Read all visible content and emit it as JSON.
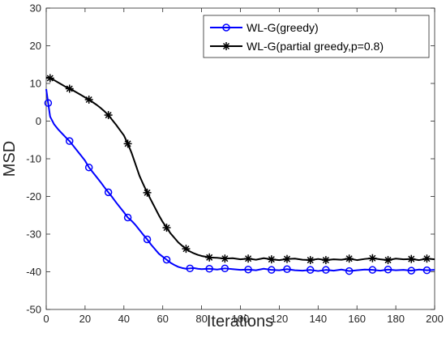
{
  "chart_data": {
    "type": "line",
    "title": "",
    "xlabel": "Iterations",
    "ylabel": "MSD",
    "xlim": [
      0,
      200
    ],
    "ylim": [
      -50,
      30
    ],
    "xticks": [
      0,
      20,
      40,
      60,
      80,
      100,
      120,
      140,
      160,
      180,
      200
    ],
    "yticks": [
      -50,
      -40,
      -30,
      -20,
      -10,
      0,
      10,
      20,
      30
    ],
    "grid": false,
    "legend_position": "top-right",
    "series": [
      {
        "name": "WL-G(greedy)",
        "color": "#0000ff",
        "marker": "circle",
        "x": [
          0,
          1,
          2,
          4,
          6,
          8,
          10,
          12,
          14,
          16,
          18,
          20,
          22,
          24,
          26,
          28,
          30,
          32,
          34,
          36,
          38,
          40,
          42,
          44,
          46,
          48,
          50,
          52,
          54,
          56,
          58,
          60,
          62,
          64,
          66,
          68,
          70,
          72,
          74,
          76,
          78,
          80,
          84,
          88,
          92,
          96,
          100,
          104,
          108,
          112,
          116,
          120,
          124,
          128,
          132,
          136,
          140,
          144,
          148,
          152,
          156,
          160,
          164,
          168,
          172,
          176,
          180,
          184,
          188,
          192,
          196,
          200
        ],
        "values": [
          8.5,
          4.8,
          1.2,
          -0.8,
          -2.1,
          -3.2,
          -4.3,
          -5.3,
          -6.6,
          -7.9,
          -9.2,
          -10.5,
          -12.3,
          -13.6,
          -14.9,
          -16.2,
          -17.6,
          -18.9,
          -20.2,
          -21.6,
          -22.9,
          -24.2,
          -25.6,
          -26.5,
          -27.6,
          -28.9,
          -30.2,
          -31.4,
          -32.8,
          -34.0,
          -35.2,
          -36.0,
          -36.8,
          -37.6,
          -38.2,
          -38.7,
          -39.0,
          -39.2,
          -39.1,
          -39.0,
          -39.2,
          -39.3,
          -39.2,
          -39.4,
          -39.1,
          -39.3,
          -39.5,
          -39.4,
          -39.6,
          -39.2,
          -39.5,
          -39.6,
          -39.3,
          -39.6,
          -39.7,
          -39.5,
          -39.8,
          -39.5,
          -39.7,
          -39.4,
          -39.8,
          -39.6,
          -39.4,
          -39.5,
          -39.7,
          -39.4,
          -39.6,
          -39.5,
          -39.7,
          -39.4,
          -39.6,
          -39.5
        ]
      },
      {
        "name": "WL-G(partial greedy,p=0.8)",
        "color": "#000000",
        "marker": "asterisk",
        "x": [
          0,
          2,
          4,
          6,
          8,
          10,
          12,
          14,
          16,
          18,
          20,
          22,
          24,
          26,
          28,
          30,
          32,
          34,
          36,
          38,
          40,
          42,
          44,
          46,
          48,
          50,
          52,
          54,
          56,
          58,
          60,
          62,
          64,
          66,
          68,
          70,
          72,
          74,
          76,
          78,
          80,
          82,
          84,
          88,
          92,
          96,
          100,
          104,
          108,
          112,
          116,
          120,
          124,
          128,
          132,
          136,
          140,
          144,
          148,
          152,
          156,
          160,
          164,
          168,
          172,
          176,
          180,
          184,
          188,
          192,
          196,
          200
        ],
        "values": [
          11.6,
          11.4,
          10.9,
          10.3,
          9.7,
          9.1,
          8.6,
          8.1,
          7.5,
          6.9,
          6.3,
          5.7,
          5.0,
          4.3,
          3.5,
          2.6,
          1.6,
          0.3,
          -1.0,
          -2.4,
          -3.8,
          -6.0,
          -8.5,
          -11.5,
          -14.5,
          -16.8,
          -19.0,
          -21.0,
          -23.0,
          -25.0,
          -26.8,
          -28.3,
          -29.8,
          -31.0,
          -32.2,
          -33.1,
          -33.9,
          -34.6,
          -35.1,
          -35.5,
          -35.8,
          -36.0,
          -36.2,
          -36.3,
          -36.5,
          -36.4,
          -36.7,
          -36.5,
          -36.8,
          -36.4,
          -36.7,
          -36.9,
          -36.6,
          -36.5,
          -36.8,
          -36.9,
          -36.6,
          -36.9,
          -36.7,
          -36.8,
          -36.5,
          -36.9,
          -36.6,
          -36.4,
          -36.7,
          -36.9,
          -36.5,
          -36.7,
          -36.6,
          -36.9,
          -36.5,
          -36.7
        ]
      }
    ]
  }
}
